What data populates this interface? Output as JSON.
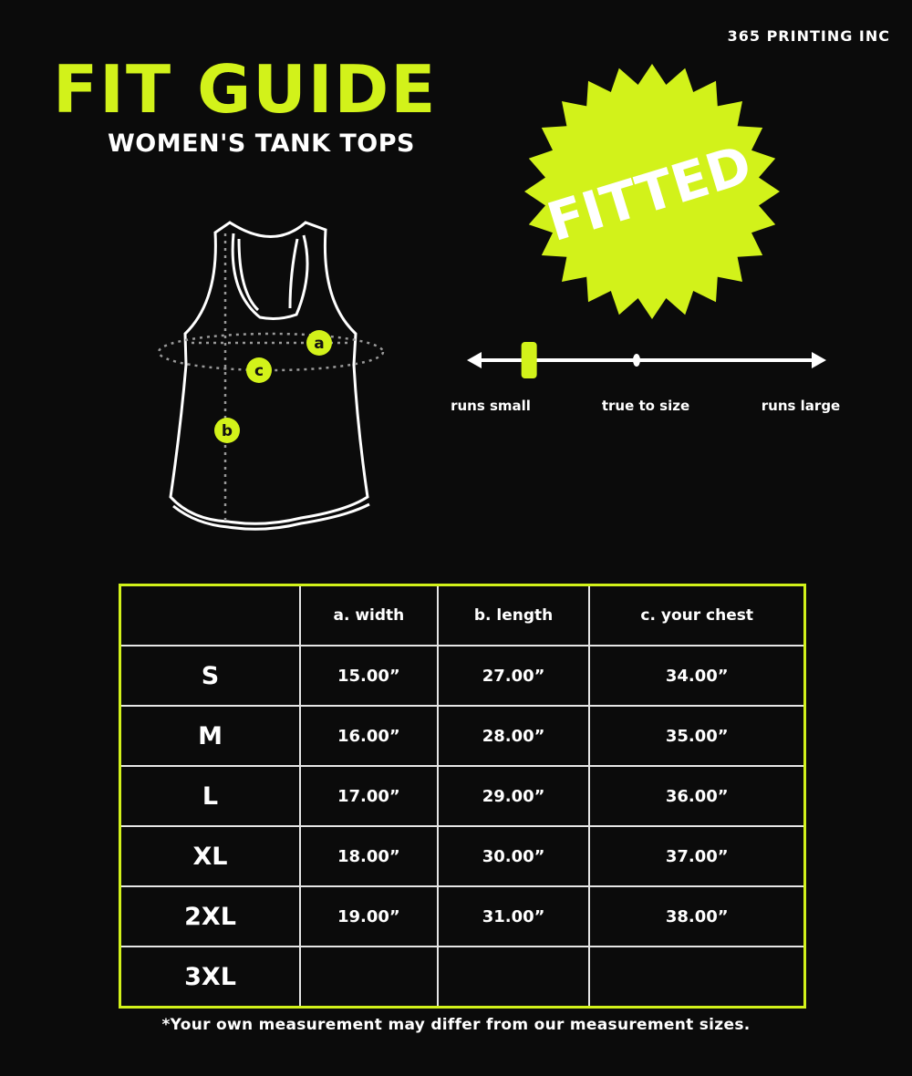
{
  "brand": "365 PRINTING INC",
  "title": "FIT GUIDE",
  "subtitle": "WOMEN'S TANK TOPS",
  "badge": {
    "label": "FITTED",
    "color": "#d2f21a"
  },
  "diagram": {
    "markers": [
      "a",
      "b",
      "c"
    ]
  },
  "fit_scale": {
    "labels": [
      "runs small",
      "true to size",
      "runs large"
    ],
    "position": 0.17
  },
  "table": {
    "headers": [
      "",
      "a. width",
      "b. length",
      "c. your chest"
    ],
    "rows": [
      {
        "size": "S",
        "width": "15.00”",
        "length": "27.00”",
        "chest": "34.00”"
      },
      {
        "size": "M",
        "width": "16.00”",
        "length": "28.00”",
        "chest": "35.00”"
      },
      {
        "size": "L",
        "width": "17.00”",
        "length": "29.00”",
        "chest": "36.00”"
      },
      {
        "size": "XL",
        "width": "18.00”",
        "length": "30.00”",
        "chest": "37.00”"
      },
      {
        "size": "2XL",
        "width": "19.00”",
        "length": "31.00”",
        "chest": "38.00”"
      },
      {
        "size": "3XL",
        "width": "",
        "length": "",
        "chest": ""
      }
    ]
  },
  "footnote": "*Your own measurement may differ from our measurement sizes."
}
